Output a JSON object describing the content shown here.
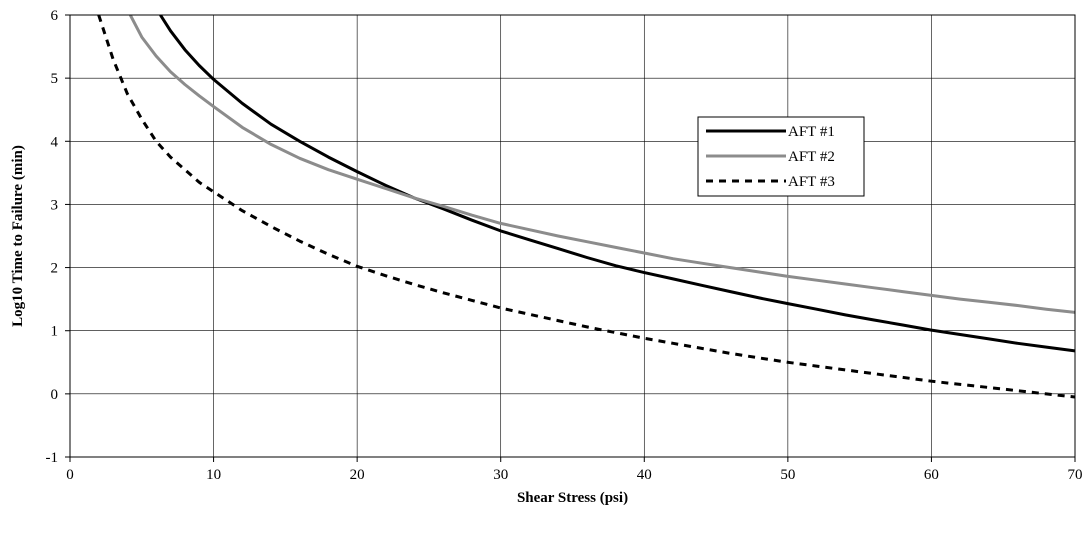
{
  "chart_data": {
    "type": "line",
    "title": "",
    "xlabel": "Shear Stress (psi)",
    "ylabel": "Log10 Time to Failure (min)",
    "xlim": [
      0,
      70
    ],
    "ylim": [
      -1,
      6
    ],
    "xticks": [
      0,
      10,
      20,
      30,
      40,
      50,
      60,
      70
    ],
    "yticks": [
      -1,
      0,
      1,
      2,
      3,
      4,
      5,
      6
    ],
    "grid": true,
    "legend_position": "upper-right",
    "series": [
      {
        "name": "AFT #1",
        "color": "#000000",
        "dash": "solid",
        "points": [
          [
            6.3,
            6.0
          ],
          [
            7,
            5.75
          ],
          [
            8,
            5.45
          ],
          [
            9,
            5.2
          ],
          [
            10,
            4.98
          ],
          [
            12,
            4.6
          ],
          [
            14,
            4.27
          ],
          [
            16,
            4.0
          ],
          [
            18,
            3.75
          ],
          [
            20,
            3.52
          ],
          [
            22,
            3.3
          ],
          [
            24,
            3.1
          ],
          [
            26,
            2.93
          ],
          [
            28,
            2.75
          ],
          [
            30,
            2.58
          ],
          [
            32,
            2.44
          ],
          [
            34,
            2.3
          ],
          [
            36,
            2.16
          ],
          [
            38,
            2.03
          ],
          [
            40,
            1.92
          ],
          [
            42,
            1.82
          ],
          [
            44,
            1.72
          ],
          [
            46,
            1.62
          ],
          [
            48,
            1.52
          ],
          [
            50,
            1.43
          ],
          [
            52,
            1.34
          ],
          [
            54,
            1.25
          ],
          [
            56,
            1.17
          ],
          [
            58,
            1.09
          ],
          [
            60,
            1.01
          ],
          [
            62,
            0.94
          ],
          [
            64,
            0.87
          ],
          [
            66,
            0.8
          ],
          [
            68,
            0.74
          ],
          [
            70,
            0.68
          ]
        ]
      },
      {
        "name": "AFT #2",
        "color": "#8c8c8c",
        "dash": "solid",
        "points": [
          [
            4.2,
            6.0
          ],
          [
            5,
            5.65
          ],
          [
            6,
            5.35
          ],
          [
            7,
            5.1
          ],
          [
            8,
            4.9
          ],
          [
            9,
            4.72
          ],
          [
            10,
            4.55
          ],
          [
            12,
            4.22
          ],
          [
            14,
            3.95
          ],
          [
            16,
            3.73
          ],
          [
            18,
            3.55
          ],
          [
            20,
            3.4
          ],
          [
            22,
            3.25
          ],
          [
            24,
            3.1
          ],
          [
            26,
            2.97
          ],
          [
            28,
            2.83
          ],
          [
            30,
            2.7
          ],
          [
            32,
            2.6
          ],
          [
            34,
            2.5
          ],
          [
            36,
            2.41
          ],
          [
            38,
            2.32
          ],
          [
            40,
            2.23
          ],
          [
            42,
            2.14
          ],
          [
            44,
            2.07
          ],
          [
            46,
            2.0
          ],
          [
            48,
            1.93
          ],
          [
            50,
            1.86
          ],
          [
            52,
            1.8
          ],
          [
            54,
            1.74
          ],
          [
            56,
            1.68
          ],
          [
            58,
            1.62
          ],
          [
            60,
            1.56
          ],
          [
            62,
            1.5
          ],
          [
            64,
            1.45
          ],
          [
            66,
            1.4
          ],
          [
            68,
            1.34
          ],
          [
            70,
            1.29
          ]
        ]
      },
      {
        "name": "AFT #3",
        "color": "#000000",
        "dash": "dashed",
        "points": [
          [
            2,
            6.0
          ],
          [
            3,
            5.3
          ],
          [
            4,
            4.75
          ],
          [
            5,
            4.35
          ],
          [
            6,
            4.0
          ],
          [
            7,
            3.75
          ],
          [
            8,
            3.55
          ],
          [
            9,
            3.35
          ],
          [
            10,
            3.2
          ],
          [
            12,
            2.9
          ],
          [
            14,
            2.65
          ],
          [
            16,
            2.42
          ],
          [
            18,
            2.21
          ],
          [
            20,
            2.02
          ],
          [
            22,
            1.87
          ],
          [
            24,
            1.73
          ],
          [
            26,
            1.6
          ],
          [
            28,
            1.48
          ],
          [
            30,
            1.36
          ],
          [
            32,
            1.26
          ],
          [
            34,
            1.16
          ],
          [
            36,
            1.06
          ],
          [
            38,
            0.97
          ],
          [
            40,
            0.88
          ],
          [
            42,
            0.8
          ],
          [
            44,
            0.72
          ],
          [
            46,
            0.64
          ],
          [
            48,
            0.57
          ],
          [
            50,
            0.5
          ],
          [
            52,
            0.44
          ],
          [
            54,
            0.38
          ],
          [
            56,
            0.32
          ],
          [
            58,
            0.26
          ],
          [
            60,
            0.2
          ],
          [
            62,
            0.15
          ],
          [
            64,
            0.1
          ],
          [
            66,
            0.05
          ],
          [
            68,
            0.0
          ],
          [
            70,
            -0.05
          ]
        ]
      }
    ]
  }
}
